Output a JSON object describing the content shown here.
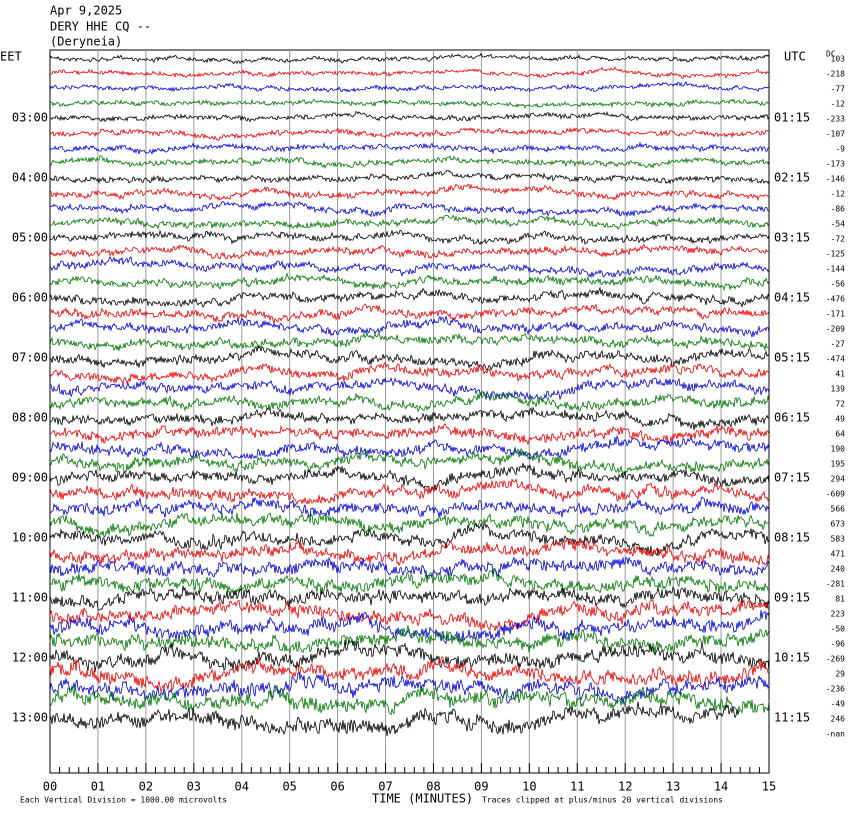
{
  "header": {
    "date": "Apr 9,2025",
    "station": "DERY HHE CQ --",
    "location": "(Deryneia)"
  },
  "left_axis": {
    "zone": "EET",
    "labels": [
      "03:00",
      "04:00",
      "05:00",
      "06:00",
      "07:00",
      "08:00",
      "09:00",
      "10:00",
      "11:00",
      "12:00",
      "13:00"
    ]
  },
  "right_axis": {
    "zone": "UTC",
    "labels": [
      "01:15",
      "02:15",
      "03:15",
      "04:15",
      "05:15",
      "06:15",
      "07:15",
      "08:15",
      "09:15",
      "10:15",
      "11:15"
    ]
  },
  "dc": {
    "label": "DC",
    "offsets": [
      "103",
      "-218",
      "-77",
      "-12",
      "-233",
      "-107",
      "-9",
      "-173",
      "-146",
      "-12",
      "-86",
      "-54",
      "-72",
      "-125",
      "-144",
      "-56",
      "-476",
      "-171",
      "-209",
      "-27",
      "-474",
      "41",
      "139",
      "72",
      "49",
      "64",
      "190",
      "195",
      "294",
      "-609",
      "566",
      "673",
      "583",
      "471",
      "240",
      "-281",
      "81",
      "223",
      "-50",
      "-96",
      "-269",
      "29",
      "-236",
      "-49",
      "246",
      "-nan"
    ]
  },
  "x_axis": {
    "title": "TIME (MINUTES)",
    "labels": [
      "00",
      "01",
      "02",
      "03",
      "04",
      "05",
      "06",
      "07",
      "08",
      "09",
      "10",
      "11",
      "12",
      "13",
      "14",
      "15"
    ]
  },
  "footer": {
    "scale": "Each Vertical Division = 1000.00 microvolts",
    "clip": "Traces clipped at plus/minus 20 vertical divisions"
  }
}
